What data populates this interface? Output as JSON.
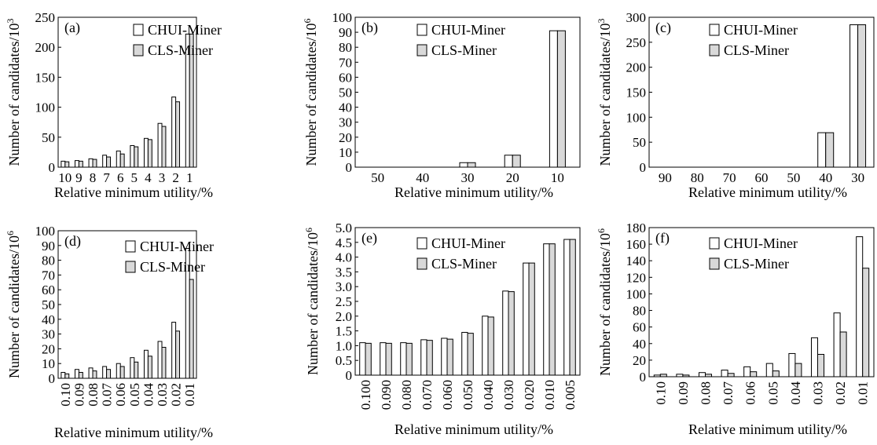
{
  "legend": {
    "series_a": "CHUI-Miner",
    "series_b": "CLS-Miner"
  },
  "colors": {
    "series_a": "#ffffff",
    "series_b": "#d9d9d9",
    "stroke": "#000000"
  },
  "chart_data": [
    {
      "type": "bar",
      "panel_label": "(a)",
      "ylabel": "Number of candidates/10",
      "ylabel_exp": "3",
      "xlabel": "Relative minimum utility/%",
      "ylim": [
        0,
        250
      ],
      "yticks": [
        "0",
        "50",
        "100",
        "150",
        "200",
        "250"
      ],
      "categories": [
        "10",
        "9",
        "8",
        "7",
        "6",
        "5",
        "4",
        "3",
        "2",
        "1"
      ],
      "series": [
        {
          "name": "CHUI-Miner",
          "values": [
            10,
            11,
            14,
            20,
            27,
            36,
            48,
            73,
            117,
            222
          ]
        },
        {
          "name": "CLS-Miner",
          "values": [
            9,
            10,
            13,
            17,
            22,
            34,
            46,
            68,
            109,
            222
          ]
        }
      ]
    },
    {
      "type": "bar",
      "panel_label": "(b)",
      "ylabel": "Number of candidates/10",
      "ylabel_exp": "6",
      "xlabel": "Relative minimum utility/%",
      "ylim": [
        0,
        100
      ],
      "yticks": [
        "0",
        "10",
        "20",
        "30",
        "40",
        "50",
        "60",
        "70",
        "80",
        "90",
        "100"
      ],
      "categories": [
        "50",
        "40",
        "30",
        "20",
        "10"
      ],
      "series": [
        {
          "name": "CHUI-Miner",
          "values": [
            0,
            0,
            3,
            8,
            91
          ]
        },
        {
          "name": "CLS-Miner",
          "values": [
            0,
            0,
            3,
            8,
            91
          ]
        }
      ]
    },
    {
      "type": "bar",
      "panel_label": "(c)",
      "ylabel": "Number of candidates/10",
      "ylabel_exp": "3",
      "xlabel": "Relative minimum utility/%",
      "ylim": [
        0,
        300
      ],
      "yticks": [
        "0",
        "50",
        "100",
        "150",
        "200",
        "250",
        "300"
      ],
      "categories": [
        "90",
        "80",
        "70",
        "60",
        "50",
        "40",
        "30"
      ],
      "series": [
        {
          "name": "CHUI-Miner",
          "values": [
            0,
            0,
            0,
            0,
            0,
            69,
            285
          ]
        },
        {
          "name": "CLS-Miner",
          "values": [
            0,
            0,
            0,
            0,
            0,
            69,
            285
          ]
        }
      ]
    },
    {
      "type": "bar",
      "panel_label": "(d)",
      "ylabel": "Number of candidates/10",
      "ylabel_exp": "6",
      "xlabel": "Relative minimum utility/%",
      "ylim": [
        0,
        100
      ],
      "yticks": [
        "0",
        "10",
        "20",
        "30",
        "40",
        "50",
        "60",
        "70",
        "80",
        "90",
        "100"
      ],
      "categories": [
        "0.10",
        "0.09",
        "0.08",
        "0.07",
        "0.06",
        "0.05",
        "0.04",
        "0.03",
        "0.02",
        "0.01"
      ],
      "series": [
        {
          "name": "CHUI-Miner",
          "values": [
            4,
            6,
            7,
            8,
            10,
            14,
            19,
            25,
            38,
            88
          ]
        },
        {
          "name": "CLS-Miner",
          "values": [
            3,
            4,
            5,
            6,
            8,
            11,
            15,
            21,
            32,
            67
          ]
        }
      ]
    },
    {
      "type": "bar",
      "panel_label": "(e)",
      "ylabel": "Number of candidates/10",
      "ylabel_exp": "6",
      "xlabel": "Relative minimum utility/%",
      "ylim": [
        0,
        5.0
      ],
      "yticks": [
        "0",
        "0.5",
        "1.0",
        "1.5",
        "2.0",
        "2.5",
        "3.0",
        "3.5",
        "4.0",
        "4.5",
        "5.0"
      ],
      "categories": [
        "0.100",
        "0.090",
        "0.080",
        "0.070",
        "0.060",
        "0.050",
        "0.040",
        "0.030",
        "0.020",
        "0.010",
        "0.005"
      ],
      "series": [
        {
          "name": "CHUI-Miner",
          "values": [
            1.1,
            1.1,
            1.1,
            1.2,
            1.25,
            1.45,
            2.0,
            2.85,
            3.8,
            4.45,
            4.6
          ]
        },
        {
          "name": "CLS-Miner",
          "values": [
            1.08,
            1.08,
            1.08,
            1.18,
            1.22,
            1.42,
            1.97,
            2.83,
            3.8,
            4.45,
            4.6
          ]
        }
      ]
    },
    {
      "type": "bar",
      "panel_label": "(f)",
      "ylabel": "Number of candidates/10",
      "ylabel_exp": "6",
      "xlabel": "Relative minimum utility/%",
      "ylim": [
        0,
        180
      ],
      "yticks": [
        "0",
        "20",
        "40",
        "60",
        "80",
        "100",
        "120",
        "140",
        "160",
        "180"
      ],
      "categories": [
        "0.10",
        "0.09",
        "0.08",
        "0.07",
        "0.06",
        "0.05",
        "0.04",
        "0.03",
        "0.02",
        "0.01"
      ],
      "series": [
        {
          "name": "CHUI-Miner",
          "values": [
            2,
            3,
            5,
            8,
            12,
            16,
            28,
            47,
            77,
            169
          ]
        },
        {
          "name": "CLS-Miner",
          "values": [
            3,
            2,
            3,
            4,
            6,
            7,
            16,
            27,
            54,
            131
          ]
        }
      ]
    }
  ]
}
